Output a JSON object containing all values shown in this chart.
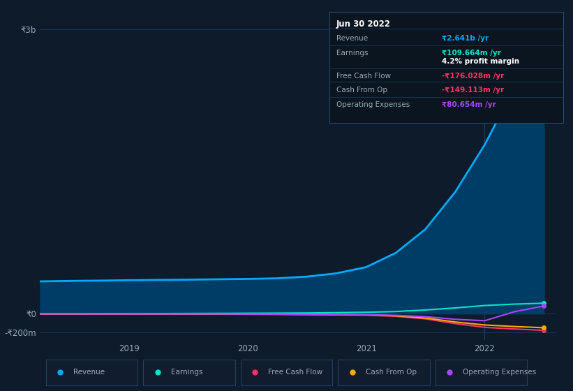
{
  "background_color": "#0d1b2a",
  "plot_bg_color": "#0d1b2a",
  "grid_color": "#1e3a5f",
  "text_color": "#9aabb8",
  "title_color": "#ffffff",
  "ylabel_top": "₹3b",
  "ylabel_zero": "₹0",
  "ylabel_bottom": "-₹200m",
  "x_ticks": [
    2019,
    2020,
    2021,
    2022
  ],
  "x_min": 2018.25,
  "x_max": 2022.6,
  "y_min": -280000000,
  "y_max": 3100000000,
  "vertical_line_x": 2022.0,
  "series": {
    "Revenue": {
      "color": "#00aaff",
      "fill_color": "#003d66",
      "data_x": [
        2018.25,
        2018.5,
        2018.75,
        2019.0,
        2019.25,
        2019.5,
        2019.75,
        2020.0,
        2020.25,
        2020.5,
        2020.75,
        2021.0,
        2021.25,
        2021.5,
        2021.75,
        2022.0,
        2022.25,
        2022.5
      ],
      "data_y": [
        340000000,
        345000000,
        348000000,
        352000000,
        355000000,
        358000000,
        362000000,
        366000000,
        372000000,
        390000000,
        425000000,
        490000000,
        640000000,
        890000000,
        1280000000,
        1780000000,
        2380000000,
        2641000000
      ]
    },
    "Earnings": {
      "color": "#00e5cc",
      "data_x": [
        2018.25,
        2018.5,
        2018.75,
        2019.0,
        2019.25,
        2019.5,
        2019.75,
        2020.0,
        2020.25,
        2020.5,
        2020.75,
        2021.0,
        2021.25,
        2021.5,
        2021.75,
        2022.0,
        2022.25,
        2022.5
      ],
      "data_y": [
        -3000000,
        -2000000,
        -1000000,
        0,
        1000000,
        2000000,
        3000000,
        4000000,
        5000000,
        7000000,
        10000000,
        14000000,
        22000000,
        38000000,
        60000000,
        85000000,
        100000000,
        109664000
      ]
    },
    "Free Cash Flow": {
      "color": "#ff3366",
      "data_x": [
        2018.25,
        2018.5,
        2018.75,
        2019.0,
        2019.25,
        2019.5,
        2019.75,
        2020.0,
        2020.25,
        2020.5,
        2020.75,
        2021.0,
        2021.25,
        2021.5,
        2021.75,
        2022.0,
        2022.25,
        2022.5
      ],
      "data_y": [
        -4000000,
        -4500000,
        -5000000,
        -5000000,
        -5500000,
        -6000000,
        -6000000,
        -7000000,
        -8000000,
        -10000000,
        -13000000,
        -16000000,
        -28000000,
        -55000000,
        -105000000,
        -145000000,
        -162000000,
        -176028000
      ]
    },
    "Cash From Op": {
      "color": "#ffaa00",
      "data_x": [
        2018.25,
        2018.5,
        2018.75,
        2019.0,
        2019.25,
        2019.5,
        2019.75,
        2020.0,
        2020.25,
        2020.5,
        2020.75,
        2021.0,
        2021.25,
        2021.5,
        2021.75,
        2022.0,
        2022.25,
        2022.5
      ],
      "data_y": [
        -3500000,
        -4000000,
        -4000000,
        -4000000,
        -4500000,
        -5000000,
        -5000000,
        -6000000,
        -7000000,
        -9000000,
        -11000000,
        -13000000,
        -23000000,
        -46000000,
        -88000000,
        -120000000,
        -136000000,
        -149113000
      ]
    },
    "Operating Expenses": {
      "color": "#aa44ff",
      "data_x": [
        2018.25,
        2018.5,
        2018.75,
        2019.0,
        2019.25,
        2019.5,
        2019.75,
        2020.0,
        2020.25,
        2020.5,
        2020.75,
        2021.0,
        2021.25,
        2021.5,
        2021.75,
        2022.0,
        2022.25,
        2022.5
      ],
      "data_y": [
        -3000000,
        -3000000,
        -3500000,
        -3500000,
        -4000000,
        -4000000,
        -4000000,
        -5000000,
        -6000000,
        -7000000,
        -9000000,
        -11000000,
        -18000000,
        -32000000,
        -60000000,
        -75000000,
        20000000,
        80654000
      ]
    }
  },
  "info_box": {
    "title": "Jun 30 2022",
    "title_color": "#ffffff",
    "bg_color": "#0a1520",
    "border_color": "#2a4a6a",
    "rows": [
      {
        "label": "Revenue",
        "value": "₹2.641b /yr",
        "value_color": "#00aaff",
        "extra": null,
        "extra_color": null
      },
      {
        "label": "Earnings",
        "value": "₹109.664m /yr",
        "value_color": "#00e5cc",
        "extra": "4.2% profit margin",
        "extra_color": "#ffffff"
      },
      {
        "label": "Free Cash Flow",
        "value": "-₹176.028m /yr",
        "value_color": "#ff3366",
        "extra": null,
        "extra_color": null
      },
      {
        "label": "Cash From Op",
        "value": "-₹149.113m /yr",
        "value_color": "#ff3366",
        "extra": null,
        "extra_color": null
      },
      {
        "label": "Operating Expenses",
        "value": "₹80.654m /yr",
        "value_color": "#aa44ff",
        "extra": null,
        "extra_color": null
      }
    ]
  },
  "legend": [
    {
      "label": "Revenue",
      "color": "#00aaff"
    },
    {
      "label": "Earnings",
      "color": "#00e5cc"
    },
    {
      "label": "Free Cash Flow",
      "color": "#ff3366"
    },
    {
      "label": "Cash From Op",
      "color": "#ffaa00"
    },
    {
      "label": "Operating Expenses",
      "color": "#aa44ff"
    }
  ]
}
